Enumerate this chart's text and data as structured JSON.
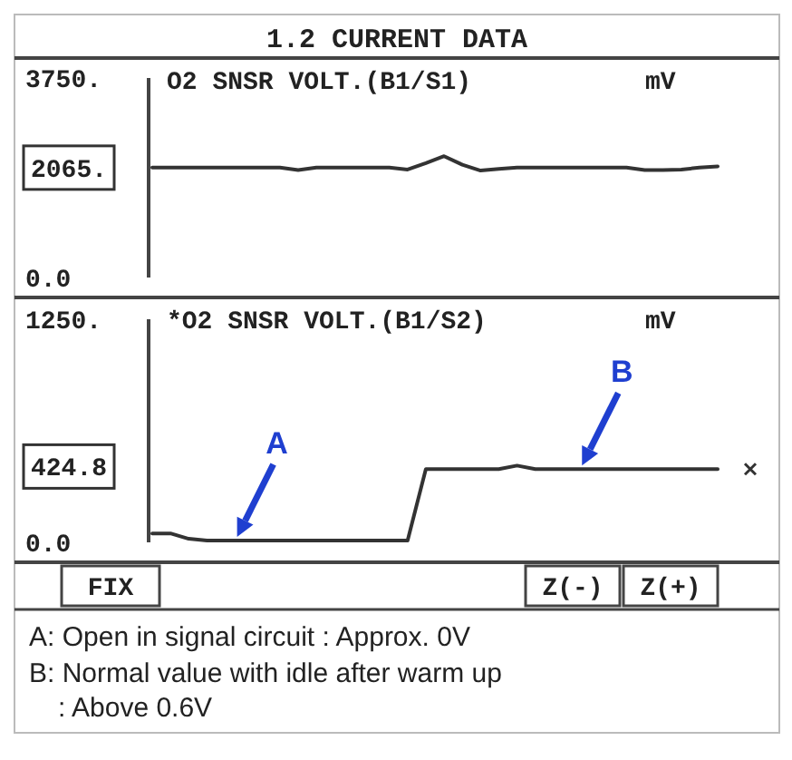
{
  "chart_data": [
    {
      "type": "line",
      "title": "1.2 CURRENT DATA",
      "subtitle": "O2 SNSR VOLT.(B1/S1)",
      "ylabel": "mV",
      "categories": [
        null,
        null,
        null,
        null,
        null,
        null,
        null,
        null,
        null,
        null,
        null,
        null,
        null,
        null,
        null,
        null,
        null,
        null,
        null,
        null,
        null,
        null,
        null,
        null,
        null,
        null,
        null,
        null,
        null,
        null,
        null,
        null
      ],
      "series": [
        {
          "color": "#333333",
          "values": [
            2065,
            2065,
            2065,
            2065,
            2065,
            2065,
            2065,
            2065,
            2020,
            2065,
            2065,
            2065,
            2065,
            2065,
            2030,
            2150,
            2280,
            2120,
            2010,
            2040,
            2065,
            2065,
            2065,
            2065,
            2065,
            2065,
            2065,
            2020,
            2020,
            2030,
            2065,
            2090
          ]
        }
      ],
      "ylim": [
        0,
        3750
      ],
      "yticks": [
        {
          "value": 0,
          "label": "0.0"
        },
        {
          "value": 2065,
          "label": "2065."
        },
        {
          "value": 3750,
          "label": "3750."
        }
      ],
      "tick_labels": "y"
    },
    {
      "type": "line",
      "title": "*O2 SNSR VOLT.(B1/S2)",
      "ylabel": "mV",
      "categories": [
        null,
        null,
        null,
        null,
        null,
        null,
        null,
        null,
        null,
        null,
        null,
        null,
        null,
        null,
        null,
        null,
        null,
        null,
        null,
        null,
        null,
        null,
        null,
        null,
        null,
        null,
        null,
        null,
        null,
        null,
        null,
        null
      ],
      "series": [
        {
          "color": "#333333",
          "values": [
            50,
            50,
            20,
            10,
            10,
            10,
            10,
            10,
            10,
            10,
            10,
            10,
            10,
            10,
            10,
            410,
            410,
            410,
            410,
            410,
            430,
            410,
            410,
            410,
            410,
            410,
            410,
            410,
            410,
            410,
            410,
            410
          ]
        }
      ],
      "ylim": [
        0,
        1250
      ],
      "yticks": [
        {
          "value": 0,
          "label": "0.0"
        },
        {
          "value": 424.8,
          "label": "424.8"
        },
        {
          "value": 1250,
          "label": "1250."
        }
      ],
      "tick_labels": "y",
      "annotations": [
        {
          "text": "A",
          "y": 10
        },
        {
          "text": "B",
          "y": 410
        },
        "FIX",
        "Z(-)",
        "Z(+)",
        "A: Open in signal circuit : Approx. 0V",
        "B: Normal value with idle after warm up : Above 0.6V"
      ]
    }
  ]
}
